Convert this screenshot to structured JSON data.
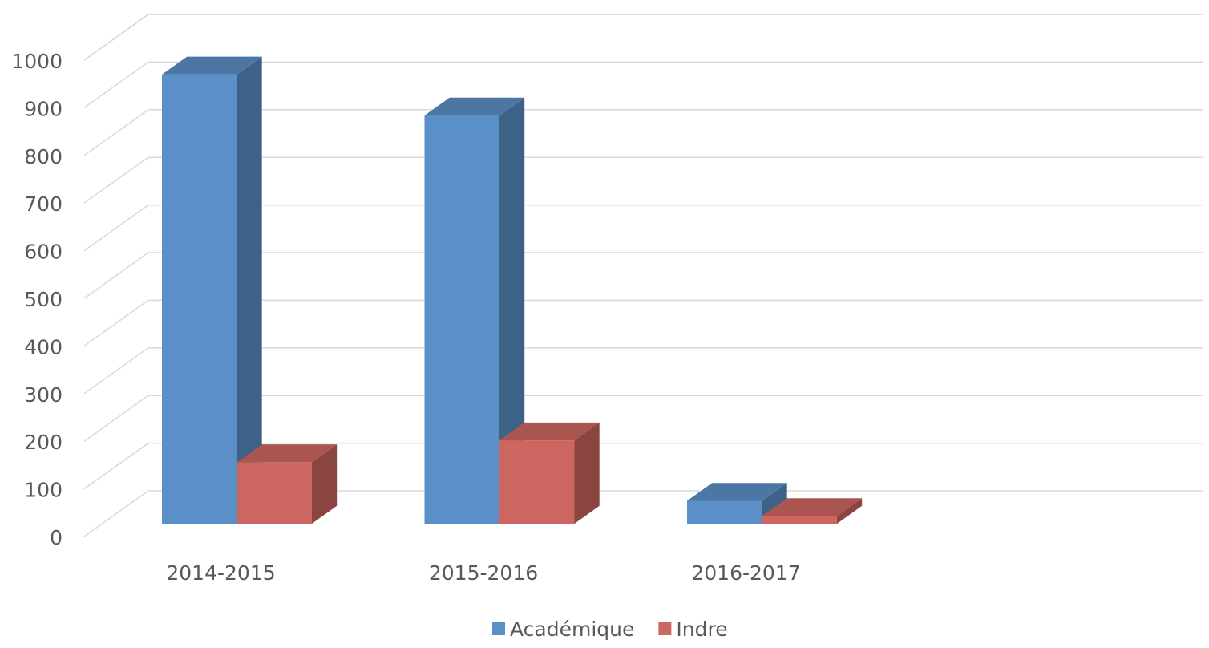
{
  "chart_data": {
    "type": "bar3d",
    "categories": [
      "2014-2015",
      "2015-2016",
      "2016-2017"
    ],
    "series": [
      {
        "name": "Académique",
        "color": "#5b8fc7",
        "values": [
          943,
          857,
          48
        ]
      },
      {
        "name": "Indre",
        "color": "#cd6660",
        "values": [
          129,
          175,
          16
        ]
      }
    ],
    "ylim": [
      0,
      1000
    ],
    "yticks": [
      0,
      100,
      200,
      300,
      400,
      500,
      600,
      700,
      800,
      900,
      1000
    ],
    "grid": true,
    "legend": "bottom"
  }
}
